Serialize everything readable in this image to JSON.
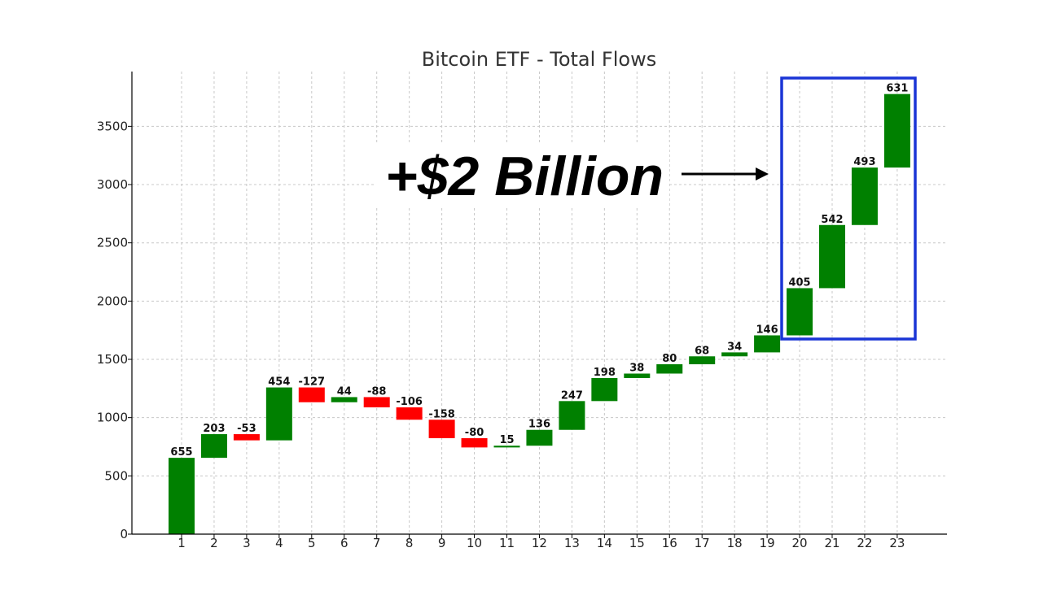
{
  "chart_data": {
    "type": "bar",
    "subtype": "waterfall",
    "title": "Bitcoin ETF - Total Flows",
    "xlabel": "",
    "ylabel": "",
    "categories": [
      "1",
      "2",
      "3",
      "4",
      "5",
      "6",
      "7",
      "8",
      "9",
      "10",
      "11",
      "12",
      "13",
      "14",
      "15",
      "16",
      "17",
      "18",
      "19",
      "20",
      "21",
      "22",
      "23"
    ],
    "values": [
      655,
      203,
      -53,
      454,
      -127,
      44,
      -88,
      -106,
      -158,
      -80,
      15,
      136,
      247,
      198,
      38,
      80,
      68,
      34,
      146,
      405,
      542,
      493,
      631
    ],
    "labels": [
      "655",
      "203",
      "-53",
      "454",
      "-127",
      "44",
      "-88",
      "-106",
      "-158",
      "-80",
      "15",
      "136",
      "247",
      "198",
      "38",
      "80",
      "68",
      "34",
      "146",
      "405",
      "542",
      "493",
      "631"
    ],
    "ylim": [
      0,
      3970
    ],
    "yticks": [
      0,
      500,
      1000,
      1500,
      2000,
      2500,
      3000,
      3500
    ],
    "grid": true,
    "colors": {
      "positive": "#008000",
      "negative": "#ff0000",
      "highlight_box": "#1a35d6",
      "arrow": "#000000"
    },
    "annotation": {
      "text": "+$2 Billion",
      "highlight_categories": [
        "20",
        "21",
        "22",
        "23"
      ]
    }
  }
}
